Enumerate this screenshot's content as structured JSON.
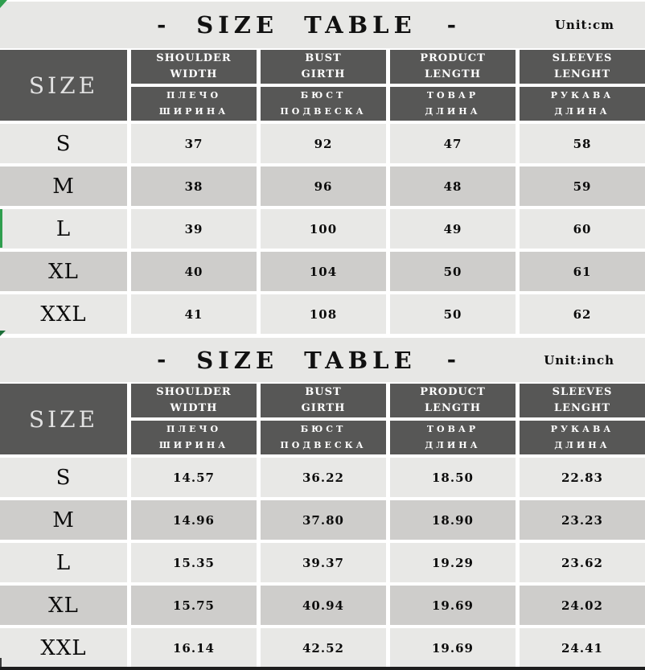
{
  "colors": {
    "header_bg": "#575756",
    "row_light": "#e8e8e6",
    "row_dark": "#cecdcb",
    "title_bg": "#e7e7e5",
    "header_text": "#ffffff",
    "size_label_text": "#e2e2e2",
    "accent_green": "#2f9e4e",
    "accent_green_dark": "#1c6f38",
    "bottom_bar": "#1d1d1d"
  },
  "chart_data": [
    {
      "type": "table",
      "title": "SIZE TABLE",
      "dash_left": "-",
      "dash_right": "-",
      "unit": "Unit:cm",
      "corner_header": "SIZE",
      "columns": [
        {
          "en1": "SHOULDER",
          "en2": "WIDTH",
          "ru1": "ПЛЕЧО",
          "ru2": "ШИРИНА"
        },
        {
          "en1": "BUST",
          "en2": "GIRTH",
          "ru1": "БЮСТ",
          "ru2": "ПОДВЕСКА"
        },
        {
          "en1": "PRODUCT",
          "en2": "LENGTH",
          "ru1": "ТОВАР",
          "ru2": "ДЛИНА"
        },
        {
          "en1": "SLEEVES",
          "en2": "LENGHT",
          "ru1": "РУКАВА",
          "ru2": "ДЛИНА"
        }
      ],
      "rows": [
        {
          "size": "S",
          "values": [
            "37",
            "92",
            "47",
            "58"
          ]
        },
        {
          "size": "M",
          "values": [
            "38",
            "96",
            "48",
            "59"
          ]
        },
        {
          "size": "L",
          "values": [
            "39",
            "100",
            "49",
            "60"
          ]
        },
        {
          "size": "XL",
          "values": [
            "40",
            "104",
            "50",
            "61"
          ]
        },
        {
          "size": "XXL",
          "values": [
            "41",
            "108",
            "50",
            "62"
          ]
        }
      ]
    },
    {
      "type": "table",
      "title": "SIZE TABLE",
      "dash_left": "-",
      "dash_right": "-",
      "unit": "Unit:inch",
      "corner_header": "SIZE",
      "columns": [
        {
          "en1": "SHOULDER",
          "en2": "WIDTH",
          "ru1": "ПЛЕЧО",
          "ru2": "ШИРИНА"
        },
        {
          "en1": "BUST",
          "en2": "GIRTH",
          "ru1": "БЮСТ",
          "ru2": "ПОДВЕСКА"
        },
        {
          "en1": "PRODUCT",
          "en2": "LENGTH",
          "ru1": "ТОВАР",
          "ru2": "ДЛИНА"
        },
        {
          "en1": "SLEEVES",
          "en2": "LENGHT",
          "ru1": "РУКАВА",
          "ru2": "ДЛИНА"
        }
      ],
      "rows": [
        {
          "size": "S",
          "values": [
            "14.57",
            "36.22",
            "18.50",
            "22.83"
          ]
        },
        {
          "size": "M",
          "values": [
            "14.96",
            "37.80",
            "18.90",
            "23.23"
          ]
        },
        {
          "size": "L",
          "values": [
            "15.35",
            "39.37",
            "19.29",
            "23.62"
          ]
        },
        {
          "size": "XL",
          "values": [
            "15.75",
            "40.94",
            "19.69",
            "24.02"
          ]
        },
        {
          "size": "XXL",
          "values": [
            "16.14",
            "42.52",
            "19.69",
            "24.41"
          ]
        }
      ]
    }
  ]
}
